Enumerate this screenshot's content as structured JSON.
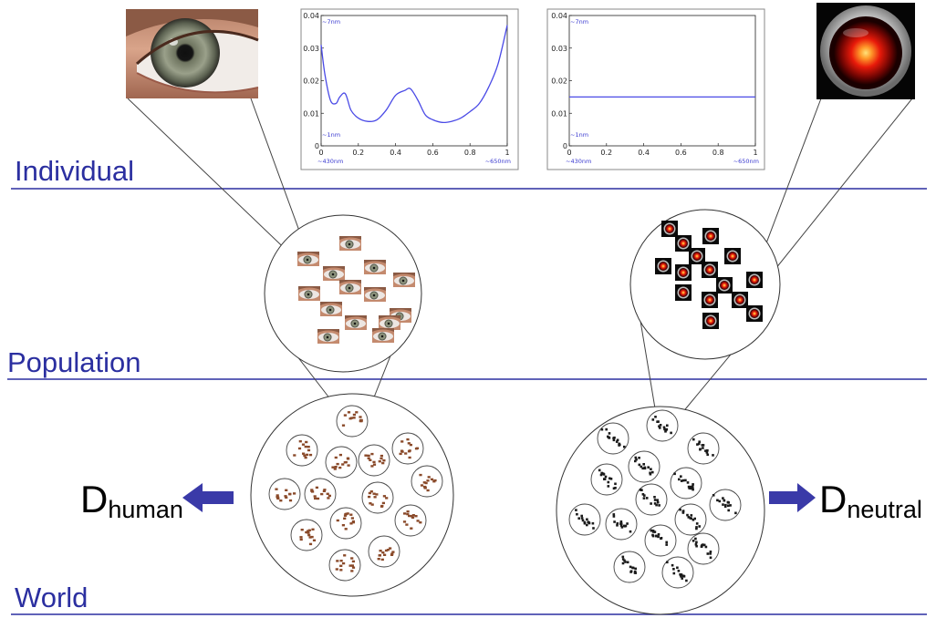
{
  "levels": {
    "individual": "Individual",
    "population": "Population",
    "world": "World"
  },
  "d_human": {
    "base": "D",
    "sub": "human"
  },
  "d_neutral": {
    "base": "D",
    "sub": "neutral"
  },
  "colors": {
    "level_text": "#2b2fa0",
    "level_line": "#2b2fa0",
    "arrow": "#3a3aa8",
    "curve": "#4a4ae6",
    "eye_dot": "#8a4a2a",
    "hal_dot": "#1a1a1a"
  },
  "icons": {
    "left_photo": "human-eye-icon",
    "right_photo": "hal-9000-eye-icon"
  },
  "charts": [
    {
      "chart_data": {
        "type": "line",
        "x": [
          0,
          0.02,
          0.05,
          0.08,
          0.1,
          0.13,
          0.16,
          0.2,
          0.25,
          0.3,
          0.35,
          0.4,
          0.45,
          0.48,
          0.52,
          0.56,
          0.6,
          0.65,
          0.7,
          0.75,
          0.8,
          0.85,
          0.9,
          0.95,
          1
        ],
        "y": [
          0.031,
          0.022,
          0.014,
          0.013,
          0.015,
          0.016,
          0.011,
          0.0085,
          0.0075,
          0.008,
          0.011,
          0.0155,
          0.017,
          0.0175,
          0.014,
          0.0095,
          0.008,
          0.0072,
          0.0075,
          0.0085,
          0.0105,
          0.013,
          0.018,
          0.025,
          0.037
        ],
        "xlim": [
          0,
          1
        ],
        "ylim": [
          0,
          0.04
        ],
        "xticks": [
          "0",
          "0.2",
          "0.4",
          "0.6",
          "0.8",
          "1"
        ],
        "yticks": [
          "0",
          "0.01",
          "0.02",
          "0.03",
          "0.04"
        ],
        "x_band_labels": [
          "~430nm",
          "~650nm"
        ],
        "y_band_labels": [
          "~1nm",
          "~7nm"
        ]
      }
    },
    {
      "chart_data": {
        "type": "line",
        "x": [
          0,
          1
        ],
        "y": [
          0.015,
          0.015
        ],
        "xlim": [
          0,
          1
        ],
        "ylim": [
          0,
          0.04
        ],
        "xticks": [
          "0",
          "0.2",
          "0.4",
          "0.6",
          "0.8",
          "1"
        ],
        "yticks": [
          "0",
          "0.01",
          "0.02",
          "0.03",
          "0.04"
        ],
        "x_band_labels": [
          "~430nm",
          "~650nm"
        ],
        "y_band_labels": [
          "~1nm",
          "~7nm"
        ]
      }
    }
  ]
}
